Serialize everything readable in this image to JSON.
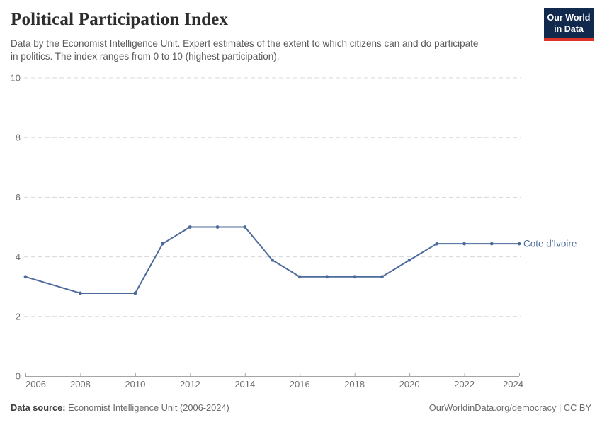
{
  "header": {
    "title": "Political Participation Index",
    "subtitle_lines": [
      "Data by the Economist Intelligence Unit. Expert estimates of the extent to which citizens can and do participate",
      "in politics. The index ranges from 0 to 10 (highest participation)."
    ],
    "logo": {
      "line1": "Our World",
      "line2": "in Data"
    }
  },
  "chart_data": {
    "type": "line",
    "title": "Political Participation Index",
    "xlabel": "",
    "ylabel": "",
    "xlim": [
      2006,
      2024
    ],
    "ylim": [
      0,
      10
    ],
    "x_ticks": [
      2006,
      2008,
      2010,
      2012,
      2014,
      2016,
      2018,
      2020,
      2022,
      2024
    ],
    "y_ticks": [
      0,
      2,
      4,
      6,
      8,
      10
    ],
    "grid": "horizontal-dashed",
    "legend_position": "end-of-line-label",
    "series": [
      {
        "name": "Cote d'Ivoire",
        "color": "#4C6A9C",
        "points": [
          [
            2006,
            3.33
          ],
          [
            2008,
            2.78
          ],
          [
            2010,
            2.78
          ],
          [
            2011,
            4.44
          ],
          [
            2012,
            5.0
          ],
          [
            2013,
            5.0
          ],
          [
            2014,
            5.0
          ],
          [
            2015,
            3.89
          ],
          [
            2016,
            3.33
          ],
          [
            2017,
            3.33
          ],
          [
            2018,
            3.33
          ],
          [
            2019,
            3.33
          ],
          [
            2020,
            3.89
          ],
          [
            2021,
            4.44
          ],
          [
            2022,
            4.44
          ],
          [
            2023,
            4.44
          ],
          [
            2024,
            4.44
          ]
        ]
      }
    ]
  },
  "footer": {
    "datasource_label": "Data source:",
    "datasource_value": " Economist Intelligence Unit (2006-2024)",
    "attribution": "OurWorldinData.org/democracy | CC BY"
  },
  "colors": {
    "line": "#4C6A9C",
    "grid": "#d8d8d8",
    "axis": "#a5a5a5",
    "tick_label": "#6e6e6e",
    "logo_bg": "#12294e",
    "logo_accent": "#dc3228"
  }
}
